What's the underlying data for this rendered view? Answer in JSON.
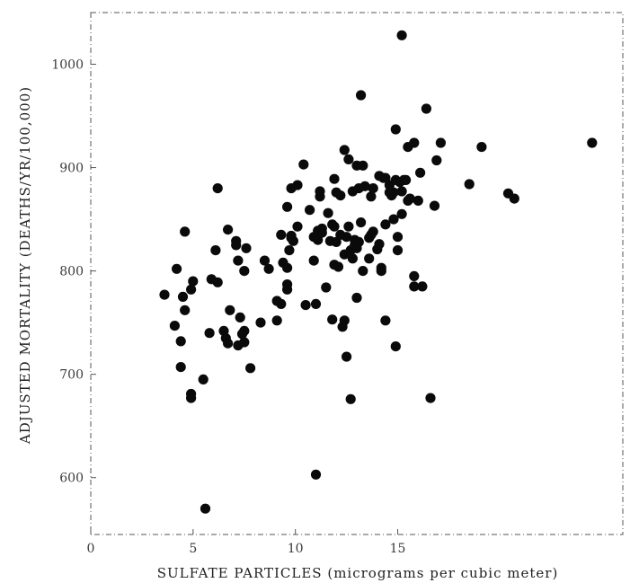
{
  "chart_data": {
    "type": "scatter",
    "title": "",
    "xlabel": "SULFATE PARTICLES (micrograms per cubic meter)",
    "ylabel": "ADJUSTED MORTALITY (DEATHS/YR/100,000)",
    "xlim": [
      0,
      26
    ],
    "ylim": [
      545,
      1050
    ],
    "xticks": [
      {
        "value": 0,
        "label": "0"
      },
      {
        "value": 5,
        "label": "5"
      },
      {
        "value": 10,
        "label": "10"
      },
      {
        "value": 15,
        "label": "15"
      }
    ],
    "yticks": [
      {
        "value": 600,
        "label": "600"
      },
      {
        "value": 700,
        "label": "700"
      },
      {
        "value": 800,
        "label": "800"
      },
      {
        "value": 900,
        "label": "900"
      },
      {
        "value": 1000,
        "label": "1000"
      }
    ],
    "grid": false,
    "series": [
      {
        "points": [
          [
            3.6,
            777
          ],
          [
            4.1,
            747
          ],
          [
            4.2,
            802
          ],
          [
            4.5,
            775
          ],
          [
            4.4,
            732
          ],
          [
            4.4,
            707
          ],
          [
            4.6,
            762
          ],
          [
            4.6,
            838
          ],
          [
            4.9,
            782
          ],
          [
            5.0,
            790
          ],
          [
            4.9,
            681
          ],
          [
            4.9,
            677
          ],
          [
            5.5,
            695
          ],
          [
            5.6,
            570
          ],
          [
            5.8,
            740
          ],
          [
            5.9,
            792
          ],
          [
            6.1,
            820
          ],
          [
            6.2,
            789
          ],
          [
            6.2,
            880
          ],
          [
            6.5,
            742
          ],
          [
            6.6,
            735
          ],
          [
            6.7,
            730
          ],
          [
            6.8,
            762
          ],
          [
            6.7,
            840
          ],
          [
            7.1,
            825
          ],
          [
            7.1,
            829
          ],
          [
            7.2,
            810
          ],
          [
            7.2,
            728
          ],
          [
            7.4,
            739
          ],
          [
            7.3,
            755
          ],
          [
            7.5,
            800
          ],
          [
            7.5,
            731
          ],
          [
            7.5,
            742
          ],
          [
            7.6,
            822
          ],
          [
            7.8,
            706
          ],
          [
            8.3,
            750
          ],
          [
            8.5,
            810
          ],
          [
            8.7,
            802
          ],
          [
            9.1,
            752
          ],
          [
            9.1,
            771
          ],
          [
            9.3,
            768
          ],
          [
            9.3,
            835
          ],
          [
            9.4,
            808
          ],
          [
            9.6,
            862
          ],
          [
            9.6,
            803
          ],
          [
            9.6,
            787
          ],
          [
            9.6,
            782
          ],
          [
            9.7,
            820
          ],
          [
            9.8,
            834
          ],
          [
            9.8,
            832
          ],
          [
            9.8,
            880
          ],
          [
            9.9,
            829
          ],
          [
            10.1,
            843
          ],
          [
            10.1,
            883
          ],
          [
            10.4,
            903
          ],
          [
            10.5,
            767
          ],
          [
            10.7,
            859
          ],
          [
            10.9,
            810
          ],
          [
            10.9,
            833
          ],
          [
            11.0,
            603
          ],
          [
            11.0,
            768
          ],
          [
            11.1,
            830
          ],
          [
            11.1,
            839
          ],
          [
            11.2,
            872
          ],
          [
            11.2,
            877
          ],
          [
            11.3,
            841
          ],
          [
            11.3,
            837
          ],
          [
            11.5,
            784
          ],
          [
            11.6,
            856
          ],
          [
            11.7,
            829
          ],
          [
            11.8,
            753
          ],
          [
            11.8,
            845
          ],
          [
            11.9,
            843
          ],
          [
            11.9,
            889
          ],
          [
            11.9,
            806
          ],
          [
            12.0,
            828
          ],
          [
            12.0,
            876
          ],
          [
            12.1,
            804
          ],
          [
            12.2,
            873
          ],
          [
            12.2,
            835
          ],
          [
            12.3,
            746
          ],
          [
            12.4,
            816
          ],
          [
            12.4,
            752
          ],
          [
            12.5,
            717
          ],
          [
            12.4,
            917
          ],
          [
            12.5,
            833
          ],
          [
            12.6,
            843
          ],
          [
            12.6,
            908
          ],
          [
            12.7,
            676
          ],
          [
            12.7,
            820
          ],
          [
            12.8,
            812
          ],
          [
            12.9,
            830
          ],
          [
            12.9,
            825
          ],
          [
            12.8,
            877
          ],
          [
            13.0,
            902
          ],
          [
            13.0,
            774
          ],
          [
            13.0,
            822
          ],
          [
            13.1,
            880
          ],
          [
            13.1,
            828
          ],
          [
            13.2,
            970
          ],
          [
            13.2,
            847
          ],
          [
            13.3,
            902
          ],
          [
            13.4,
            882
          ],
          [
            13.3,
            800
          ],
          [
            13.6,
            832
          ],
          [
            13.6,
            812
          ],
          [
            13.7,
            835
          ],
          [
            13.7,
            872
          ],
          [
            13.8,
            880
          ],
          [
            13.8,
            838
          ],
          [
            14.0,
            821
          ],
          [
            14.1,
            826
          ],
          [
            14.1,
            892
          ],
          [
            14.2,
            800
          ],
          [
            14.2,
            803
          ],
          [
            14.3,
            890
          ],
          [
            14.4,
            890
          ],
          [
            14.4,
            752
          ],
          [
            14.4,
            845
          ],
          [
            14.6,
            883
          ],
          [
            14.6,
            876
          ],
          [
            14.7,
            873
          ],
          [
            14.8,
            876
          ],
          [
            14.8,
            850
          ],
          [
            14.9,
            888
          ],
          [
            14.9,
            937
          ],
          [
            14.9,
            727
          ],
          [
            15.0,
            820
          ],
          [
            15.0,
            833
          ],
          [
            15.1,
            886
          ],
          [
            15.2,
            855
          ],
          [
            15.2,
            1028
          ],
          [
            15.2,
            877
          ],
          [
            15.3,
            888
          ],
          [
            15.4,
            888
          ],
          [
            15.5,
            920
          ],
          [
            15.5,
            868
          ],
          [
            15.6,
            870
          ],
          [
            15.8,
            924
          ],
          [
            15.8,
            795
          ],
          [
            15.8,
            785
          ],
          [
            16.0,
            868
          ],
          [
            16.1,
            895
          ],
          [
            16.2,
            785
          ],
          [
            16.4,
            957
          ],
          [
            16.6,
            677
          ],
          [
            16.8,
            863
          ],
          [
            16.9,
            907
          ],
          [
            17.1,
            924
          ],
          [
            18.5,
            884
          ],
          [
            19.1,
            920
          ],
          [
            20.4,
            875
          ],
          [
            20.7,
            870
          ],
          [
            24.5,
            924
          ]
        ]
      }
    ]
  }
}
